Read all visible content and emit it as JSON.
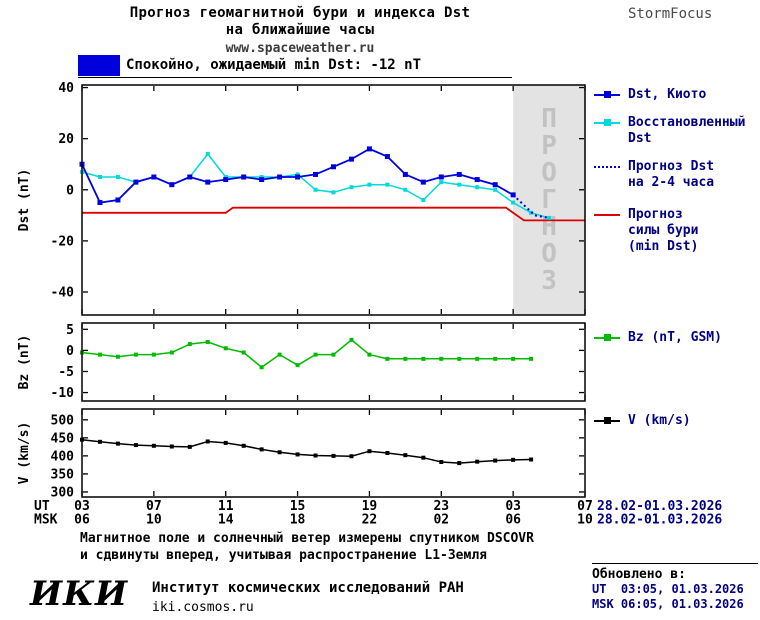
{
  "header": {
    "title_line1": "Прогноз геомагнитной бури и индекса Dst",
    "title_line2": "на ближайшие часы",
    "website": "www.spaceweather.ru",
    "brand": "StormFocus"
  },
  "status_banner": {
    "label": "Спокойно, ожидаемый min Dst: -12 nT",
    "swatch_color": "#0000dd"
  },
  "chart_data": [
    {
      "type": "line",
      "ylabel": "Dst (nT)",
      "ylim": [
        -49,
        41
      ],
      "yticks": [
        40,
        20,
        0,
        -20,
        -40
      ],
      "xlim": [
        0,
        28
      ],
      "xticks": [
        0,
        4,
        8,
        12,
        16,
        20,
        24,
        28
      ],
      "forecast_region": {
        "x0": 24,
        "x1": 28,
        "label": "ПРОГНОЗ"
      },
      "series": [
        {
          "id": "storm-forecast",
          "name": "Прогноз силы бури (min Dst)",
          "color": "#dd0000",
          "width": 1.8,
          "x": [
            0,
            8,
            8.4,
            23.6,
            24.6,
            28
          ],
          "values": [
            -9,
            -9,
            -7,
            -7,
            -12,
            -12
          ]
        },
        {
          "id": "dst-recovered",
          "name": "Восстановленный Dst",
          "color": "#00dada",
          "width": 1.5,
          "marker": true,
          "marker_size": 4,
          "x": [
            0,
            1,
            2,
            3,
            4,
            5,
            6,
            7,
            8,
            9,
            10,
            11,
            12,
            13,
            14,
            15,
            16,
            17,
            18,
            19,
            20,
            21,
            22,
            23,
            24,
            25,
            26
          ],
          "values": [
            7,
            5,
            5,
            3,
            5,
            2,
            5,
            14,
            5,
            5,
            5,
            5,
            6,
            0,
            -1,
            1,
            2,
            2,
            0,
            -4,
            3,
            2,
            1,
            0,
            -5,
            -9,
            -11
          ]
        },
        {
          "id": "dst-kyoto",
          "name": "Dst, Киото",
          "color": "#0000dd",
          "width": 1.8,
          "marker": true,
          "marker_size": 5,
          "x": [
            0,
            1,
            2,
            3,
            4,
            5,
            6,
            7,
            8,
            9,
            10,
            11,
            12,
            13,
            14,
            15,
            16,
            17,
            18,
            19,
            20,
            21,
            22,
            23,
            24
          ],
          "values": [
            10,
            -5,
            -4,
            3,
            5,
            2,
            5,
            3,
            4,
            5,
            4,
            5,
            5,
            6,
            9,
            12,
            16,
            13,
            6,
            3,
            5,
            6,
            4,
            2,
            -2
          ]
        },
        {
          "id": "dst-forecast",
          "name": "Прогноз Dst на 2-4 часа",
          "color": "#0000dd",
          "style": "dotted",
          "width": 2,
          "x": [
            24,
            24.6,
            25.2,
            26
          ],
          "values": [
            -2,
            -6,
            -10,
            -11
          ]
        }
      ]
    },
    {
      "type": "line",
      "ylabel": "Bz (nT)",
      "ylim": [
        -12,
        6.5
      ],
      "yticks": [
        5,
        0,
        -5,
        -10
      ],
      "xlim": [
        0,
        28
      ],
      "xticks": [
        0,
        4,
        8,
        12,
        16,
        20,
        24,
        28
      ],
      "series": [
        {
          "id": "bz",
          "name": "Bz (nT, GSM)",
          "color": "#00bb00",
          "width": 1.5,
          "marker": true,
          "marker_size": 4,
          "x": [
            0,
            1,
            2,
            3,
            4,
            5,
            6,
            7,
            8,
            9,
            10,
            11,
            12,
            13,
            14,
            15,
            16,
            17,
            18,
            19,
            20,
            21,
            22,
            23,
            24,
            25
          ],
          "values": [
            -0.5,
            -1,
            -1.5,
            -1,
            -1,
            -0.5,
            1.5,
            2,
            0.5,
            -0.5,
            -4,
            -1,
            -3.5,
            -1,
            -1,
            2.5,
            -1,
            -2,
            -2,
            -2,
            -2,
            -2,
            -2,
            -2,
            -2,
            -2
          ]
        }
      ]
    },
    {
      "type": "line",
      "ylabel": "V (km/s)",
      "ylim": [
        286,
        530
      ],
      "yticks": [
        500,
        450,
        400,
        350,
        300
      ],
      "xlim": [
        0,
        28
      ],
      "xticks": [
        0,
        4,
        8,
        12,
        16,
        20,
        24,
        28
      ],
      "series": [
        {
          "id": "v",
          "name": "V (km/s)",
          "color": "#000000",
          "width": 1.5,
          "marker": true,
          "marker_size": 4,
          "x": [
            0,
            1,
            2,
            3,
            4,
            5,
            6,
            7,
            8,
            9,
            10,
            11,
            12,
            13,
            14,
            15,
            16,
            17,
            18,
            19,
            20,
            21,
            22,
            23,
            24,
            25
          ],
          "values": [
            445,
            439,
            434,
            430,
            428,
            426,
            425,
            440,
            436,
            428,
            418,
            410,
            404,
            401,
            400,
            399,
            413,
            408,
            402,
            395,
            383,
            380,
            384,
            387,
            389,
            390
          ]
        }
      ]
    }
  ],
  "legend_dst": {
    "items": [
      {
        "label": "Dst, Киото",
        "color": "#0000dd"
      },
      {
        "label": "Восстановленный\nDst",
        "color": "#00dada"
      },
      {
        "label": "Прогноз Dst\nна 2-4 часа",
        "color": "#0000dd"
      },
      {
        "label": "Прогноз\nсилы бури\n(min Dst)",
        "color": "#dd0000"
      }
    ]
  },
  "legend_bz": {
    "label": "Bz (nT, GSM)",
    "color": "#00bb00"
  },
  "legend_v": {
    "label": "V (km/s)",
    "color": "#000000"
  },
  "xaxis": {
    "ut_label": "UT",
    "msk_label": "MSK",
    "ut_ticks": [
      "03",
      "07",
      "11",
      "15",
      "19",
      "23",
      "03",
      "07"
    ],
    "msk_ticks": [
      "06",
      "10",
      "14",
      "18",
      "22",
      "02",
      "06",
      "10"
    ],
    "ut_date": "28.02-01.03.2026",
    "msk_date": "28.02-01.03.2026"
  },
  "footnote": {
    "line1": "Магнитное поле и солнечный ветер измерены спутником DSCOVR",
    "line2": "и сдвинуты вперед, учитывая распространение L1-Земля"
  },
  "footer": {
    "logo": "ИКИ",
    "institute": "Институт космических исследований РАН",
    "site": "iki.cosmos.ru",
    "updated_label": "Обновлено в:",
    "updated_ut": "UT  03:05, 01.03.2026",
    "updated_msk": "MSK 06:05, 01.03.2026"
  }
}
